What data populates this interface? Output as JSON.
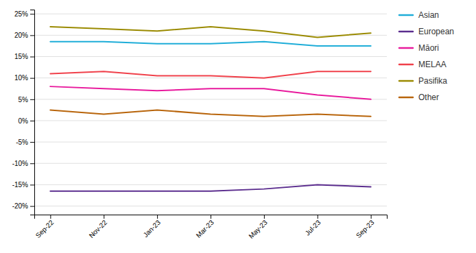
{
  "chart_data": {
    "type": "line",
    "categories": [
      "Sep-22",
      "Nov-22",
      "Jan-23",
      "Mar-23",
      "May-23",
      "Jul-23",
      "Sep-23"
    ],
    "series": [
      {
        "name": "Asian",
        "color": "#1EADD8",
        "values": [
          18.5,
          18.5,
          18.0,
          18.0,
          18.5,
          17.5,
          17.5
        ]
      },
      {
        "name": "European",
        "color": "#5B2D8E",
        "values": [
          -16.5,
          -16.5,
          -16.5,
          -16.5,
          -16.0,
          -15.0,
          -15.5
        ]
      },
      {
        "name": "Māori",
        "color": "#E8199C",
        "values": [
          8.0,
          7.5,
          7.0,
          7.5,
          7.5,
          6.0,
          5.0
        ]
      },
      {
        "name": "MELAA",
        "color": "#F0404A",
        "values": [
          11.0,
          11.5,
          10.5,
          10.5,
          10.0,
          11.5,
          11.5
        ]
      },
      {
        "name": "Pasifika",
        "color": "#9A8A00",
        "values": [
          22.0,
          21.5,
          21.0,
          22.0,
          21.0,
          19.5,
          20.5
        ]
      },
      {
        "name": "Other",
        "color": "#B8640A",
        "values": [
          2.5,
          1.5,
          2.5,
          1.5,
          1.0,
          1.5,
          1.0
        ]
      }
    ],
    "ylim": [
      -22,
      26
    ],
    "yticks": [
      {
        "value": -20,
        "label": "-20%"
      },
      {
        "value": -15,
        "label": "-15%"
      },
      {
        "value": -10,
        "label": "-10%"
      },
      {
        "value": -5,
        "label": "-5%"
      },
      {
        "value": 0,
        "label": "0%"
      },
      {
        "value": 5,
        "label": "5%"
      },
      {
        "value": 10,
        "label": "10%"
      },
      {
        "value": 15,
        "label": "15%"
      },
      {
        "value": 20,
        "label": "20%"
      },
      {
        "value": 25,
        "label": "25%"
      }
    ],
    "grid": true,
    "legend": "right"
  }
}
